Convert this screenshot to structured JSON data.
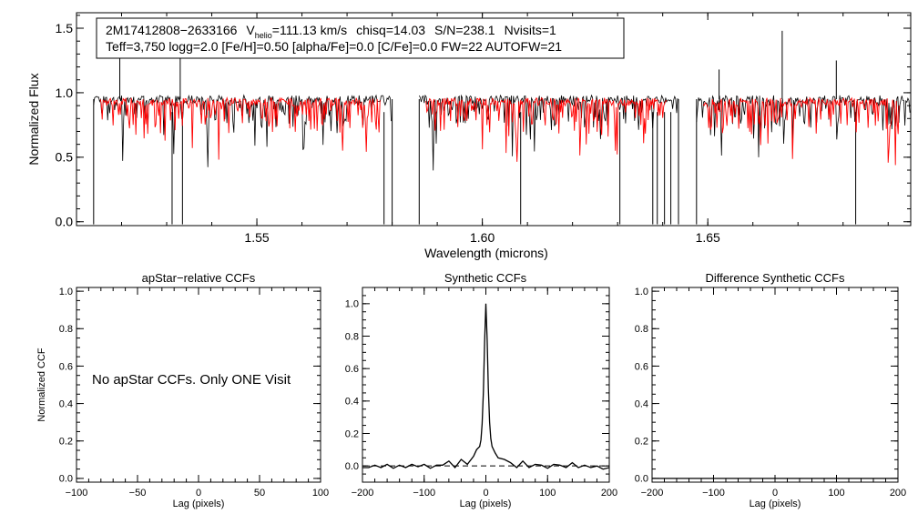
{
  "chart_data": [
    {
      "type": "line",
      "panel": "spectrum",
      "title": "",
      "xlabel": "Wavelength (microns)",
      "ylabel": "Normalized Flux",
      "xlim": [
        1.51,
        1.695
      ],
      "ylim": [
        -0.03,
        1.62
      ],
      "x_ticks": [
        1.55,
        1.6,
        1.65
      ],
      "x_tick_labels": [
        "1.55",
        "1.60",
        "1.65"
      ],
      "y_ticks": [
        0.0,
        0.5,
        1.0,
        1.5
      ],
      "y_tick_labels": [
        "0.0",
        "0.5",
        "1.0",
        "1.5"
      ],
      "chips": [
        [
          1.5138,
          1.58
        ],
        [
          1.586,
          1.6435
        ],
        [
          1.6475,
          1.695
        ]
      ],
      "series": [
        {
          "name": "Observed spectrum",
          "color": "#000000",
          "approx_continuum": 0.95
        },
        {
          "name": "Best-fit model",
          "color": "#ff0000",
          "approx_continuum": 0.93
        }
      ],
      "annotation": {
        "star_id": "2M17412808−2633166",
        "vhelio_prefix": "V",
        "vhelio_sub": "helio",
        "vhelio_value": "=111.13 km/s",
        "chisq": "chisq=14.03",
        "snr": "S/N=238.1",
        "nvisits": "Nvisits=1",
        "line2": "Teff=3,750 logg=2.0 [Fe/H]=0.50 [alpha/Fe]=0.0 [C/Fe]=0.0 FW=22 AUTOFW=21"
      }
    },
    {
      "type": "line",
      "panel": "apstar",
      "title": "apStar−relative CCFs",
      "xlabel": "Lag (pixels)",
      "ylabel": "Normalized CCF",
      "xlim": [
        -100,
        100
      ],
      "ylim": [
        -0.02,
        1.02
      ],
      "x_ticks": [
        -100,
        -50,
        0,
        50,
        100
      ],
      "x_tick_labels": [
        "−100",
        "−50",
        "0",
        "50",
        "100"
      ],
      "y_ticks": [
        0.0,
        0.2,
        0.4,
        0.6,
        0.8,
        1.0
      ],
      "y_tick_labels": [
        "0.0",
        "0.2",
        "0.4",
        "0.6",
        "0.8",
        "1.0"
      ],
      "note": "No apStar CCFs.  Only ONE Visit",
      "series": []
    },
    {
      "type": "line",
      "panel": "synthetic",
      "title": "Synthetic CCFs",
      "xlabel": "Lag (pixels)",
      "ylabel": "",
      "xlim": [
        -200,
        200
      ],
      "ylim": [
        -0.1,
        1.1
      ],
      "x_ticks": [
        -200,
        -100,
        0,
        100,
        200
      ],
      "x_tick_labels": [
        "−200",
        "−100",
        "0",
        "100",
        "200"
      ],
      "y_ticks": [
        0.0,
        0.2,
        0.4,
        0.6,
        0.8,
        1.0
      ],
      "y_tick_labels": [
        "0.0",
        "0.2",
        "0.4",
        "0.6",
        "0.8",
        "1.0"
      ],
      "dashed_zero_line": true,
      "series": [
        {
          "name": "CCF",
          "color": "#000000",
          "x": [
            -200,
            -190,
            -180,
            -170,
            -160,
            -150,
            -140,
            -130,
            -120,
            -110,
            -100,
            -90,
            -80,
            -70,
            -60,
            -50,
            -40,
            -30,
            -20,
            -15,
            -10,
            -8,
            -6,
            -4,
            -2,
            0,
            2,
            4,
            6,
            8,
            10,
            15,
            20,
            30,
            40,
            50,
            60,
            70,
            80,
            90,
            100,
            110,
            120,
            130,
            140,
            150,
            160,
            170,
            180,
            190,
            200
          ],
          "y": [
            -0.01,
            -0.01,
            0.005,
            -0.01,
            0.01,
            -0.015,
            0.005,
            -0.01,
            0.01,
            -0.005,
            0.01,
            -0.015,
            0.005,
            0.005,
            0.03,
            -0.01,
            0.04,
            0.01,
            0.06,
            0.1,
            0.12,
            0.16,
            0.26,
            0.46,
            0.76,
            1.0,
            0.78,
            0.48,
            0.27,
            0.17,
            0.12,
            0.08,
            0.05,
            0.04,
            0.02,
            -0.01,
            0.03,
            -0.01,
            0.01,
            0.005,
            -0.015,
            0.01,
            0.005,
            -0.01,
            0.02,
            -0.01,
            0.005,
            -0.01,
            0.0,
            -0.02,
            -0.01
          ]
        }
      ]
    },
    {
      "type": "line",
      "panel": "difference",
      "title": "Difference Synthetic CCFs",
      "xlabel": "Lag (pixels)",
      "ylabel": "",
      "xlim": [
        -200,
        200
      ],
      "ylim": [
        -0.02,
        1.02
      ],
      "x_ticks": [
        -200,
        -100,
        0,
        100,
        200
      ],
      "x_tick_labels": [
        "−200",
        "−100",
        "0",
        "100",
        "200"
      ],
      "y_ticks": [
        0.0,
        0.2,
        0.4,
        0.6,
        0.8,
        1.0
      ],
      "y_tick_labels": [
        "0.0",
        "0.2",
        "0.4",
        "0.6",
        "0.8",
        "1.0"
      ],
      "series": [
        {
          "name": "difference",
          "color": "#000000",
          "x": [
            -200,
            200
          ],
          "y": [
            0.0,
            0.0
          ]
        }
      ]
    }
  ]
}
